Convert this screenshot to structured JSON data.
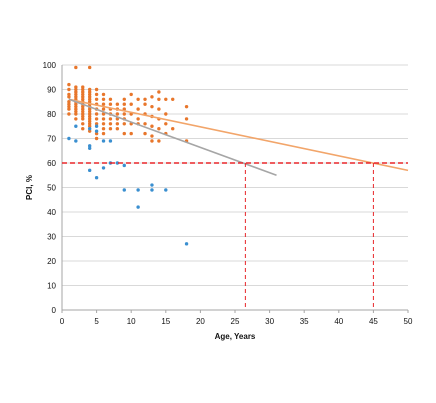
{
  "chart_data": {
    "type": "scatter",
    "xlabel": "Age, Years",
    "ylabel": "PCI, %",
    "xlim": [
      0,
      50
    ],
    "ylim": [
      0,
      100
    ],
    "xticks": [
      0,
      5,
      10,
      15,
      20,
      25,
      30,
      35,
      40,
      45,
      50
    ],
    "yticks": [
      0,
      10,
      20,
      30,
      40,
      50,
      60,
      70,
      80,
      90,
      100
    ],
    "grid": "horizontal",
    "legend": "none",
    "colors": {
      "orange_points": "#E8762B",
      "blue_points": "#3A8FD0",
      "orange_trend": "#F2A56A",
      "gray_trend": "#A6A6A6",
      "threshold": "#E8262A",
      "grid": "#D9D9D9",
      "axis": "#A6A6A6"
    },
    "series": [
      {
        "color_key": "orange_points",
        "points": [
          [
            1,
            92
          ],
          [
            1,
            90
          ],
          [
            1,
            88
          ],
          [
            1,
            87
          ],
          [
            1,
            85
          ],
          [
            1,
            84
          ],
          [
            1,
            83
          ],
          [
            1,
            82
          ],
          [
            1,
            80
          ],
          [
            2,
            99
          ],
          [
            2,
            91
          ],
          [
            2,
            90
          ],
          [
            2,
            89
          ],
          [
            2,
            88
          ],
          [
            2,
            87
          ],
          [
            2,
            86
          ],
          [
            2,
            85
          ],
          [
            2,
            84
          ],
          [
            2,
            83
          ],
          [
            2,
            82
          ],
          [
            2,
            81
          ],
          [
            2,
            80
          ],
          [
            2,
            78
          ],
          [
            3,
            91
          ],
          [
            3,
            90
          ],
          [
            3,
            89
          ],
          [
            3,
            88
          ],
          [
            3,
            87
          ],
          [
            3,
            86
          ],
          [
            3,
            85
          ],
          [
            3,
            84
          ],
          [
            3,
            83
          ],
          [
            3,
            82
          ],
          [
            3,
            81
          ],
          [
            3,
            80
          ],
          [
            3,
            79
          ],
          [
            3,
            78
          ],
          [
            3,
            76
          ],
          [
            3,
            74
          ],
          [
            4,
            99
          ],
          [
            4,
            90
          ],
          [
            4,
            89
          ],
          [
            4,
            88
          ],
          [
            4,
            87
          ],
          [
            4,
            86
          ],
          [
            4,
            85
          ],
          [
            4,
            84
          ],
          [
            4,
            83
          ],
          [
            4,
            82
          ],
          [
            4,
            81
          ],
          [
            4,
            80
          ],
          [
            4,
            79
          ],
          [
            4,
            78
          ],
          [
            4,
            77
          ],
          [
            4,
            76
          ],
          [
            4,
            75
          ],
          [
            4,
            73
          ],
          [
            5,
            90
          ],
          [
            5,
            88
          ],
          [
            5,
            86
          ],
          [
            5,
            84
          ],
          [
            5,
            82
          ],
          [
            5,
            80
          ],
          [
            5,
            78
          ],
          [
            5,
            76
          ],
          [
            5,
            72
          ],
          [
            5,
            70
          ],
          [
            6,
            88
          ],
          [
            6,
            86
          ],
          [
            6,
            84
          ],
          [
            6,
            82
          ],
          [
            6,
            80
          ],
          [
            6,
            78
          ],
          [
            6,
            76
          ],
          [
            6,
            74
          ],
          [
            6,
            72
          ],
          [
            7,
            86
          ],
          [
            7,
            84
          ],
          [
            7,
            82
          ],
          [
            7,
            80
          ],
          [
            7,
            78
          ],
          [
            7,
            76
          ],
          [
            7,
            74
          ],
          [
            8,
            84
          ],
          [
            8,
            82
          ],
          [
            8,
            80
          ],
          [
            8,
            78
          ],
          [
            8,
            76
          ],
          [
            8,
            74
          ],
          [
            9,
            86
          ],
          [
            9,
            84
          ],
          [
            9,
            82
          ],
          [
            9,
            80
          ],
          [
            9,
            78
          ],
          [
            9,
            76
          ],
          [
            9,
            72
          ],
          [
            10,
            88
          ],
          [
            10,
            84
          ],
          [
            10,
            80
          ],
          [
            10,
            76
          ],
          [
            10,
            72
          ],
          [
            11,
            86
          ],
          [
            11,
            82
          ],
          [
            11,
            78
          ],
          [
            11,
            76
          ],
          [
            12,
            86
          ],
          [
            12,
            84
          ],
          [
            12,
            80
          ],
          [
            12,
            76
          ],
          [
            12,
            72
          ],
          [
            13,
            87
          ],
          [
            13,
            83
          ],
          [
            13,
            79
          ],
          [
            13,
            75
          ],
          [
            13,
            71
          ],
          [
            13,
            69
          ],
          [
            14,
            89
          ],
          [
            14,
            86
          ],
          [
            14,
            82
          ],
          [
            14,
            78
          ],
          [
            14,
            74
          ],
          [
            14,
            69
          ],
          [
            15,
            86
          ],
          [
            15,
            80
          ],
          [
            15,
            76
          ],
          [
            15,
            72
          ],
          [
            16,
            86
          ],
          [
            16,
            74
          ],
          [
            18,
            83
          ],
          [
            18,
            78
          ],
          [
            18,
            69
          ]
        ]
      },
      {
        "color_key": "blue_points",
        "points": [
          [
            1,
            70
          ],
          [
            2,
            75
          ],
          [
            2,
            69
          ],
          [
            4,
            74
          ],
          [
            4,
            67
          ],
          [
            4,
            66
          ],
          [
            4,
            57
          ],
          [
            5,
            75
          ],
          [
            5,
            73
          ],
          [
            5,
            54
          ],
          [
            6,
            69
          ],
          [
            6,
            58
          ],
          [
            7,
            69
          ],
          [
            7,
            60
          ],
          [
            8,
            60
          ],
          [
            9,
            59
          ],
          [
            9,
            49
          ],
          [
            11,
            49
          ],
          [
            11,
            42
          ],
          [
            13,
            51
          ],
          [
            13,
            49
          ],
          [
            15,
            49
          ],
          [
            18,
            27
          ]
        ]
      }
    ],
    "trendlines": [
      {
        "color_key": "orange_trend",
        "x": [
          1,
          50
        ],
        "y": [
          86,
          57
        ]
      },
      {
        "color_key": "gray_trend",
        "x": [
          1,
          31
        ],
        "y": [
          86,
          55
        ]
      }
    ],
    "threshold_line": {
      "y": 60,
      "x_range": [
        0,
        50
      ]
    },
    "intersection_markers": [
      {
        "x": 26.5,
        "y": 60
      },
      {
        "x": 45,
        "y": 60
      }
    ]
  }
}
